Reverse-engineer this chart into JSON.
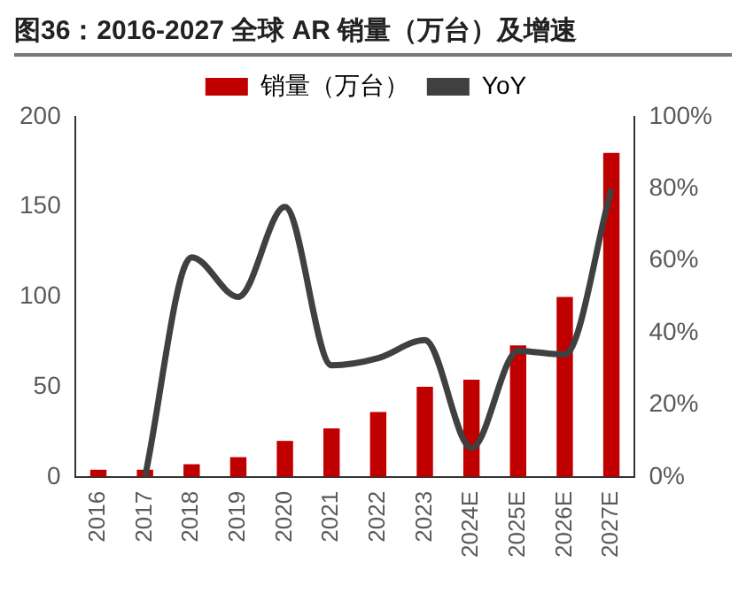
{
  "chart_data": {
    "type": "bar",
    "title": "图36：2016-2027 全球 AR 销量（万台）及增速",
    "categories": [
      "2016",
      "2017",
      "2018",
      "2019",
      "2020",
      "2021",
      "2022",
      "2023",
      "2024E",
      "2025E",
      "2026E",
      "2027E"
    ],
    "series": [
      {
        "name": "销量（万台）",
        "color": "#c00000",
        "values": [
          4,
          4,
          7,
          11,
          20,
          27,
          36,
          50,
          54,
          73,
          100,
          180
        ]
      },
      {
        "name": "YoY",
        "type": "line",
        "axis": "y2",
        "color": "#404040",
        "values": [
          null,
          0,
          61,
          50,
          75,
          31,
          33,
          38,
          8,
          35,
          34,
          80
        ]
      }
    ],
    "ylim": [
      0,
      200
    ],
    "yticks": [
      0,
      50,
      100,
      150,
      200
    ],
    "y2lim": [
      0,
      100
    ],
    "y2ticks": [
      {
        "value": 0,
        "label": "0%"
      },
      {
        "value": 20,
        "label": "20%"
      },
      {
        "value": 40,
        "label": "40%"
      },
      {
        "value": 60,
        "label": "60%"
      },
      {
        "value": 80,
        "label": "80%"
      },
      {
        "value": 100,
        "label": "100%"
      }
    ],
    "legend": "top",
    "grid": false
  }
}
